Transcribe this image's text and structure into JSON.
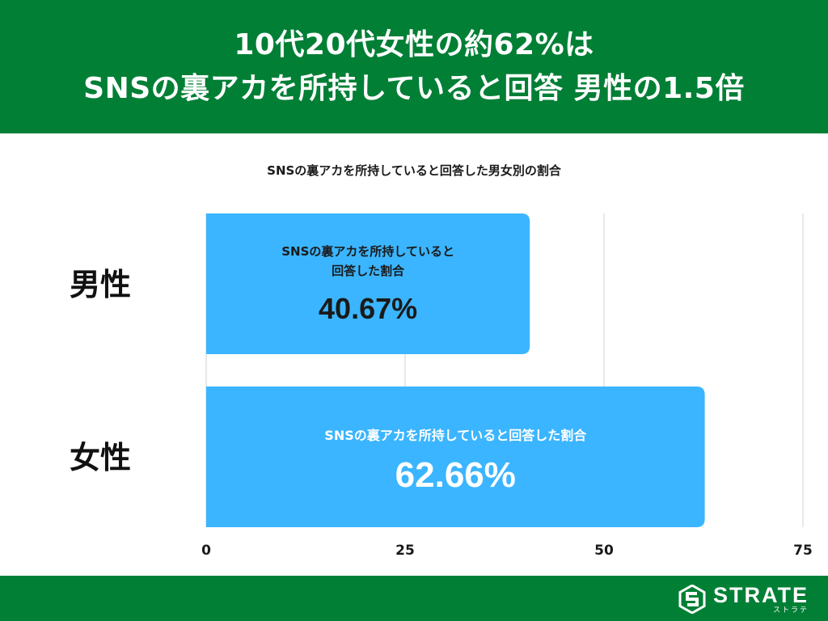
{
  "header": {
    "line1": "10代20代女性の約62%は",
    "line2": "SNSの裏アカを所持していると回答 男性の1.5倍"
  },
  "chart_data": {
    "type": "bar",
    "orientation": "horizontal",
    "title": "SNSの裏アカを所持していると回答した男女別の割合",
    "categories": [
      "男性",
      "女性"
    ],
    "values": [
      40.67,
      62.66
    ],
    "value_labels": [
      "40.67%",
      "62.66%"
    ],
    "bar_captions": [
      "SNSの裏アカを所持していると\n回答した割合",
      "SNSの裏アカを所持していると回答した割合"
    ],
    "xticks": [
      0,
      25,
      50,
      75
    ],
    "xlim": [
      0,
      75
    ],
    "grid": true,
    "colors": {
      "bar": "#3bb5ff",
      "grid": "#d0d0d0",
      "bar_text": "#1a1a1a",
      "bar_text_alt": "#ffffff"
    }
  },
  "footer": {
    "logo_text": "STRATE",
    "logo_kana": "ストラテ",
    "logo_icon": "strate-logo-icon"
  }
}
